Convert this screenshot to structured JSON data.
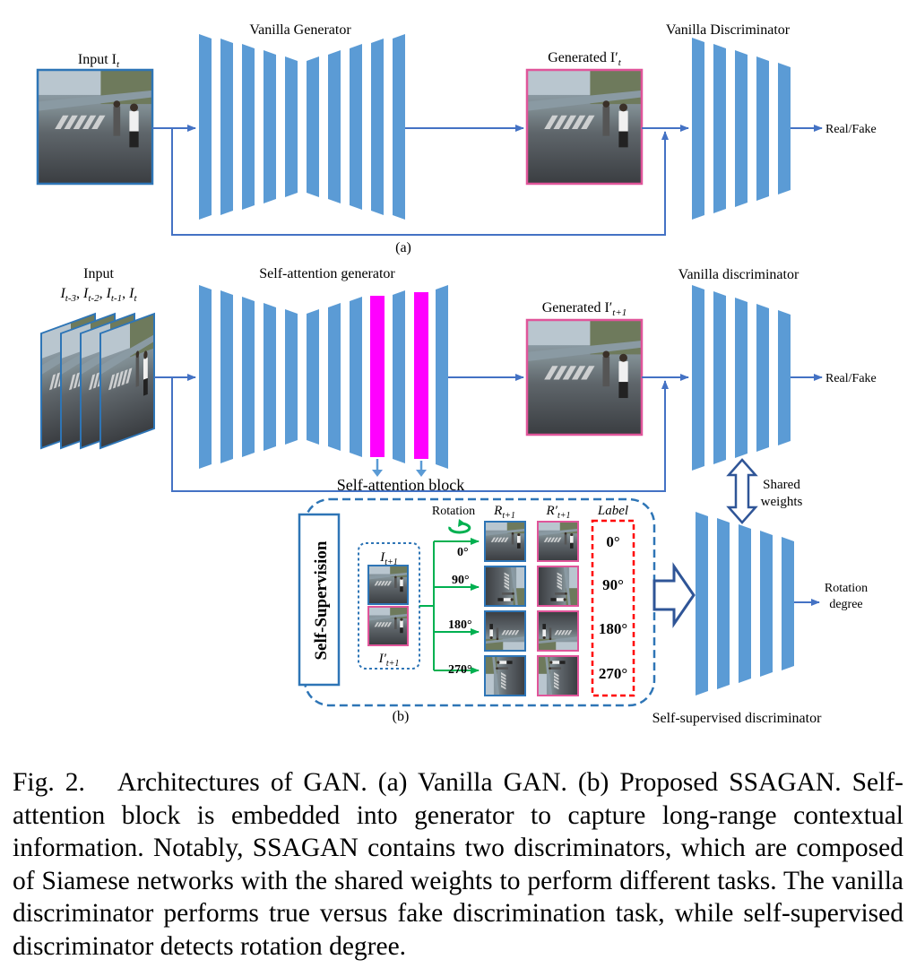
{
  "panel_a": {
    "input_label": "Input I",
    "input_sub": "t",
    "generator_label": "Vanilla Generator",
    "generated_label": "Generated I′",
    "generated_sub": "t",
    "discriminator_label": "Vanilla Discriminator",
    "output_label": "Real/Fake",
    "panel_tag": "(a)"
  },
  "panel_b": {
    "input_label": "Input",
    "input_frames": [
      {
        "main": "I",
        "sub": "t-3"
      },
      {
        "main": "I",
        "sub": "t-2"
      },
      {
        "main": "I",
        "sub": "t-1"
      },
      {
        "main": "I",
        "sub": "t"
      }
    ],
    "generator_label": "Self-attention generator",
    "attention_block_label": "Self-attention block",
    "generated_label": "Generated I′",
    "generated_sub": "t+1",
    "discriminator_label": "Vanilla discriminator",
    "output_label": "Real/Fake",
    "shared_weights_line1": "Shared",
    "shared_weights_line2": "weights",
    "self_supervision_label": "Self-Supervision",
    "pair_top_label": "I",
    "pair_top_sub": "t+1",
    "pair_bottom_label": "I′",
    "pair_bottom_sub": "t+1",
    "rotation_label": "Rotation",
    "col_real_label": "R",
    "col_real_sub": "t+1",
    "col_fake_label": "R′",
    "col_fake_sub": "t+1",
    "col_label_header": "Label",
    "angles": [
      "0°",
      "90°",
      "180°",
      "270°"
    ],
    "labels": [
      "0°",
      "90°",
      "180°",
      "270°"
    ],
    "ss_discriminator_label": "Self-supervised discriminator",
    "ss_output_line1": "Rotation",
    "ss_output_line2": "degree",
    "panel_tag": "(b)"
  },
  "colors": {
    "layer_blue": "#5b9bd5",
    "arrow_blue": "#4472c4",
    "magenta": "#ff00ff",
    "pink_border": "#e0559a",
    "dashed_blue": "#2e75b6",
    "green": "#00b050",
    "red_dashed": "#ff0000",
    "navy": "#2f5597"
  },
  "caption": {
    "label": "Fig. 2.",
    "text": "Architectures of GAN. (a) Vanilla GAN. (b) Proposed SSAGAN. Self-attention block is embedded into generator to capture long-range contextual information. Notably, SSAGAN contains two discriminators, which are composed of Siamese networks with the shared weights to perform different tasks. The vanilla discriminator performs true versus fake discrimination task, while self-supervised discriminator detects rotation degree."
  }
}
